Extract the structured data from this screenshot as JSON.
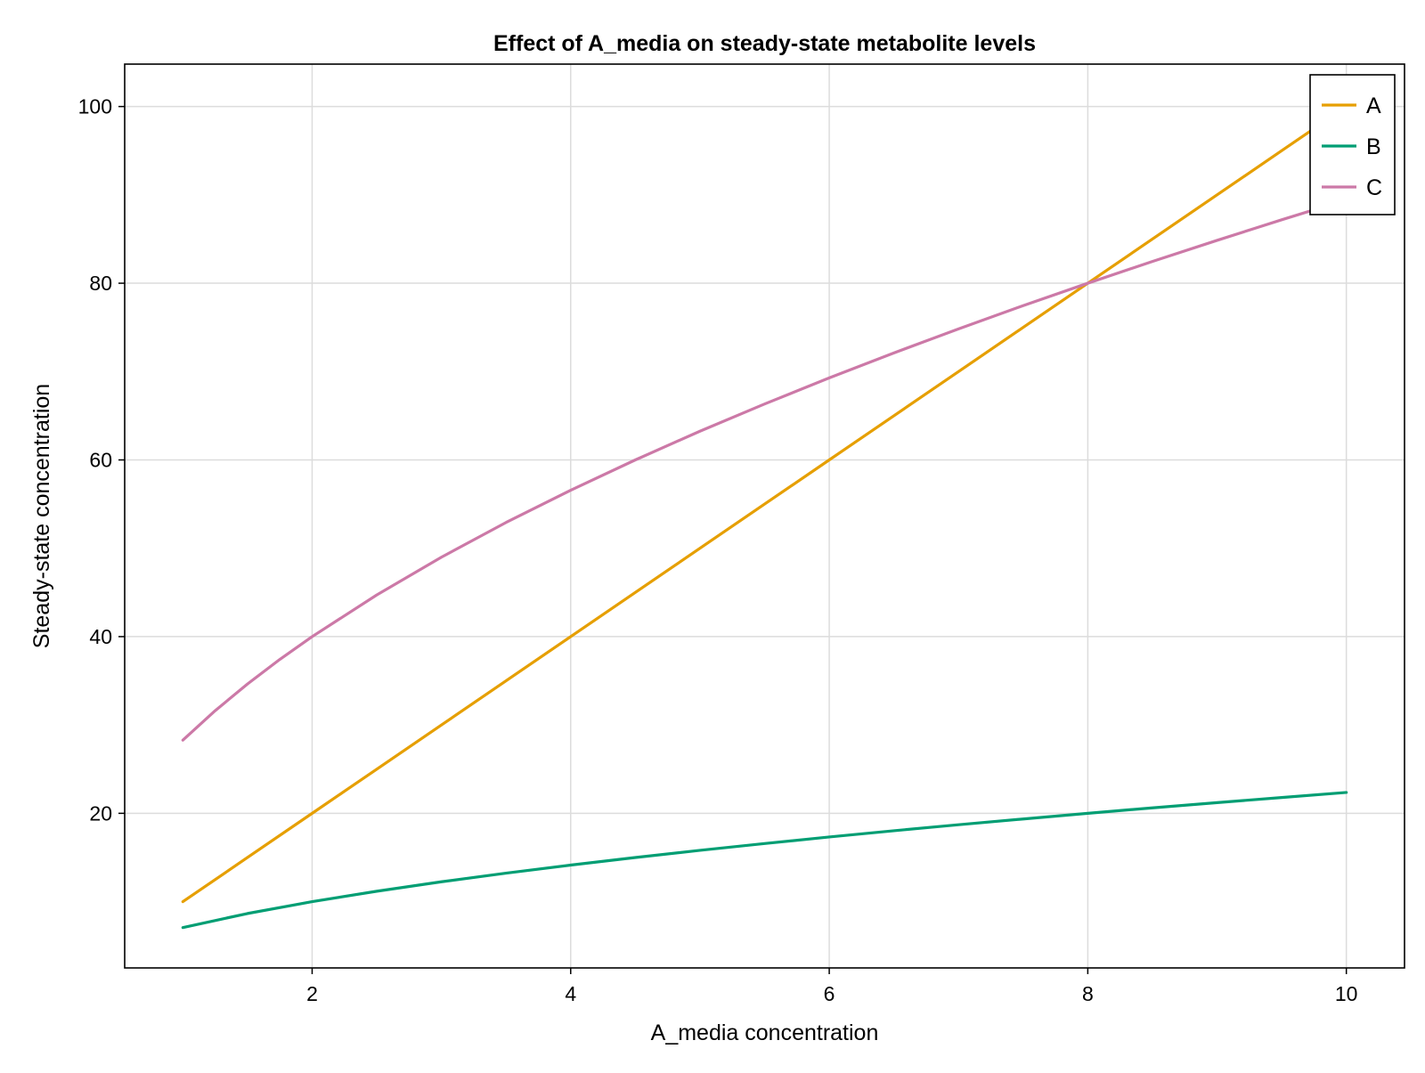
{
  "chart_data": {
    "type": "line",
    "title": "Effect of A_media on steady-state metabolite levels",
    "xlabel": "A_media concentration",
    "ylabel": "Steady-state concentration",
    "xlim": [
      0.55,
      10.45
    ],
    "ylim": [
      2.5,
      104.8
    ],
    "xticks": [
      2,
      4,
      6,
      8,
      10
    ],
    "yticks": [
      20,
      40,
      60,
      80,
      100
    ],
    "grid": true,
    "legend_position": "top-right",
    "series": [
      {
        "name": "A",
        "color": "#E69F00",
        "x": [
          1,
          1.5,
          2,
          2.5,
          3,
          3.5,
          4,
          4.5,
          5,
          5.5,
          6,
          6.5,
          7,
          7.5,
          8,
          8.5,
          9,
          9.5,
          10
        ],
        "y": [
          10,
          15,
          20,
          25,
          30,
          35,
          40,
          45,
          50,
          55,
          60,
          65,
          70,
          75,
          80,
          85,
          90,
          95,
          100
        ]
      },
      {
        "name": "B",
        "color": "#009E73",
        "x": [
          1,
          1.5,
          2,
          2.5,
          3,
          3.5,
          4,
          4.5,
          5,
          5.5,
          6,
          6.5,
          7,
          7.5,
          8,
          8.5,
          9,
          9.5,
          10
        ],
        "y": [
          7.07,
          8.66,
          10.0,
          11.18,
          12.25,
          13.23,
          14.14,
          15.0,
          15.81,
          16.58,
          17.32,
          18.03,
          18.71,
          19.36,
          20.0,
          20.62,
          21.21,
          21.79,
          22.36
        ]
      },
      {
        "name": "C",
        "color": "#CC79A7",
        "x": [
          1,
          1.25,
          1.5,
          1.75,
          2,
          2.5,
          3,
          3.5,
          4,
          4.5,
          5,
          5.5,
          6,
          6.5,
          7,
          7.5,
          8,
          8.5,
          9,
          9.5,
          10
        ],
        "y": [
          28.28,
          31.62,
          34.64,
          37.42,
          40.0,
          44.72,
          48.99,
          52.92,
          56.57,
          60.0,
          63.25,
          66.33,
          69.28,
          72.11,
          74.83,
          77.46,
          80.0,
          82.46,
          84.85,
          87.18,
          89.44
        ]
      }
    ]
  }
}
